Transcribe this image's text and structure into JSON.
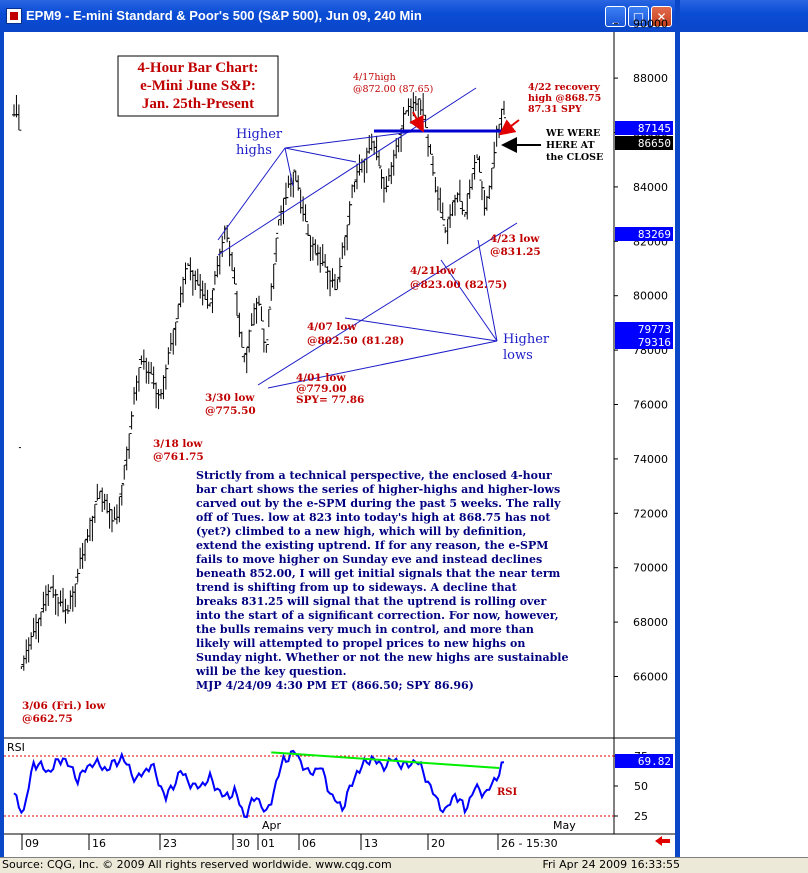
{
  "window": {
    "title": "EPM9 - E-mini Standard & Poor's 500 (S&P 500), Jun 09, 240 Min",
    "min_label": "_",
    "max_label": "□",
    "close_label": "✕"
  },
  "footer": {
    "source": "Source: CQG, Inc. © 2009 All rights reserved worldwide. www.cqg.com",
    "timestamp": "Fri Apr 24 2009 16:33:55"
  },
  "colors": {
    "bars": "#000000",
    "annotation": "#c00000",
    "trendline": "#1c1cc8",
    "rsi_line": "#0000ff",
    "divergence": "#00ee00",
    "frame": "#0a46c8"
  },
  "chart_data": [
    {
      "type": "bar",
      "title": "4-Hour Bar Chart:\ne-Mini June S&P:\nJan. 25th-Present",
      "y_ticks": [
        "90000",
        "88000",
        "86000",
        "84000",
        "82000",
        "80000",
        "78000",
        "76000",
        "74000",
        "72000",
        "70000",
        "68000",
        "66000"
      ],
      "ylim": [
        652,
        912
      ],
      "x_ticks": [
        "09",
        "16",
        "23",
        "30",
        "01",
        "06",
        "13",
        "20",
        "26 - 15:30"
      ],
      "x_month_labels": [
        "Apr",
        "May"
      ],
      "price_tags": [
        {
          "label": "87145",
          "value": 871.45,
          "style": "blue"
        },
        {
          "label": "86650",
          "value": 866.5,
          "style": "black"
        },
        {
          "label": "83269",
          "value": 832.69,
          "style": "blue"
        },
        {
          "label": "79773",
          "value": 797.73,
          "style": "blue"
        },
        {
          "label": "79316",
          "value": 793.16,
          "style": "blue"
        }
      ],
      "swing_points": [
        {
          "bar": 3,
          "price": 662.75
        },
        {
          "bar": 15,
          "price": 693
        },
        {
          "bar": 22,
          "price": 683
        },
        {
          "bar": 35,
          "price": 728
        },
        {
          "bar": 42,
          "price": 716
        },
        {
          "bar": 52,
          "price": 778
        },
        {
          "bar": 60,
          "price": 762
        },
        {
          "bar": 71,
          "price": 812
        },
        {
          "bar": 80,
          "price": 796
        },
        {
          "bar": 87,
          "price": 826
        },
        {
          "bar": 94,
          "price": 775.5
        },
        {
          "bar": 100,
          "price": 800
        },
        {
          "bar": 103,
          "price": 779
        },
        {
          "bar": 108,
          "price": 828
        },
        {
          "bar": 115,
          "price": 846
        },
        {
          "bar": 120,
          "price": 822
        },
        {
          "bar": 132,
          "price": 802.5
        },
        {
          "bar": 139,
          "price": 842
        },
        {
          "bar": 147,
          "price": 857
        },
        {
          "bar": 152,
          "price": 838
        },
        {
          "bar": 160,
          "price": 868
        },
        {
          "bar": 166,
          "price": 872
        },
        {
          "bar": 170,
          "price": 852
        },
        {
          "bar": 176,
          "price": 823
        },
        {
          "bar": 181,
          "price": 838
        },
        {
          "bar": 184,
          "price": 829
        },
        {
          "bar": 189,
          "price": 852
        },
        {
          "bar": 193,
          "price": 831.25
        },
        {
          "bar": 199,
          "price": 868.75
        },
        {
          "bar": 200,
          "price": 866.5
        }
      ],
      "annotations": [
        {
          "id": "a1",
          "lines": [
            "4/17high",
            "@872.00 (87.65)"
          ]
        },
        {
          "id": "a2",
          "lines": [
            "4/22 recovery",
            "high @868.75",
            "87.31 SPY"
          ]
        },
        {
          "id": "a3",
          "lines": [
            "WE WERE",
            "HERE AT",
            "the CLOSE"
          ]
        },
        {
          "id": "a4",
          "lines": [
            "Higher",
            "highs"
          ]
        },
        {
          "id": "a5",
          "lines": [
            "4/23 low",
            "@831.25"
          ]
        },
        {
          "id": "a6",
          "lines": [
            "4/21low",
            "@823.00 (82.75)"
          ]
        },
        {
          "id": "a7",
          "lines": [
            "4/07 low",
            "@802.50 (81.28)"
          ]
        },
        {
          "id": "a8",
          "lines": [
            "Higher",
            "lows"
          ]
        },
        {
          "id": "a9",
          "lines": [
            "4/01 low",
            "@779.00",
            "SPY= 77.86"
          ]
        },
        {
          "id": "a10",
          "lines": [
            "3/30 low",
            "@775.50"
          ]
        },
        {
          "id": "a11",
          "lines": [
            "3/18 low",
            "@761.75"
          ]
        },
        {
          "id": "a12",
          "lines": [
            "3/06 (Fri.) low",
            "@662.75"
          ]
        }
      ],
      "commentary": [
        "Strictly from a technical perspective, the enclosed 4-hour",
        "bar chart shows the series of higher-highs and higher-lows",
        "carved out by the e-SPM during the past 5 weeks. The rally",
        "off of Tues. low at 823 into today's high at 868.75 has not",
        "(yet?) climbed to a new high, which will by definition,",
        "extend the existing uptrend. If for any reason, the e-SPM",
        "fails to move higher on Sunday eve and instead declines",
        "beneath 852.00, I will get initial signals that the near term",
        "trend is shifting from up to sideways. A decline that",
        "breaks 831.25 will signal that the uptrend is rolling over",
        "into the start of a significant correction. For now, however,",
        "the bulls remains very much in control, and more than",
        "likely will attempted to propel prices to new highs on",
        "Sunday night. Whether or not the new highs are sustainable",
        "will be the key question.",
        "MJP 4/24/09  4:30 PM ET (866.50; SPY 86.96)"
      ]
    },
    {
      "type": "line",
      "label": "RSI",
      "series_label": "RSI",
      "y_ticks": [
        "75",
        "50",
        "25"
      ],
      "ylim": [
        21,
        84
      ],
      "value_tag": "69.82",
      "knots": [
        {
          "bar": 0,
          "value": 42
        },
        {
          "bar": 4,
          "value": 28
        },
        {
          "bar": 8,
          "value": 70
        },
        {
          "bar": 14,
          "value": 62
        },
        {
          "bar": 20,
          "value": 74
        },
        {
          "bar": 26,
          "value": 56
        },
        {
          "bar": 32,
          "value": 70
        },
        {
          "bar": 38,
          "value": 64
        },
        {
          "bar": 44,
          "value": 74
        },
        {
          "bar": 50,
          "value": 55
        },
        {
          "bar": 56,
          "value": 68
        },
        {
          "bar": 62,
          "value": 40
        },
        {
          "bar": 68,
          "value": 62
        },
        {
          "bar": 74,
          "value": 48
        },
        {
          "bar": 80,
          "value": 56
        },
        {
          "bar": 86,
          "value": 40
        },
        {
          "bar": 90,
          "value": 46
        },
        {
          "bar": 94,
          "value": 25
        },
        {
          "bar": 99,
          "value": 42
        },
        {
          "bar": 103,
          "value": 26
        },
        {
          "bar": 110,
          "value": 72
        },
        {
          "bar": 115,
          "value": 78
        },
        {
          "bar": 120,
          "value": 60
        },
        {
          "bar": 125,
          "value": 66
        },
        {
          "bar": 130,
          "value": 40
        },
        {
          "bar": 134,
          "value": 32
        },
        {
          "bar": 140,
          "value": 62
        },
        {
          "bar": 146,
          "value": 74
        },
        {
          "bar": 150,
          "value": 66
        },
        {
          "bar": 155,
          "value": 72
        },
        {
          "bar": 160,
          "value": 66
        },
        {
          "bar": 164,
          "value": 72
        },
        {
          "bar": 168,
          "value": 58
        },
        {
          "bar": 172,
          "value": 40
        },
        {
          "bar": 176,
          "value": 28
        },
        {
          "bar": 180,
          "value": 44
        },
        {
          "bar": 184,
          "value": 30
        },
        {
          "bar": 188,
          "value": 48
        },
        {
          "bar": 193,
          "value": 44
        },
        {
          "bar": 197,
          "value": 58
        },
        {
          "bar": 200,
          "value": 69.82
        }
      ],
      "divergence_line": [
        {
          "bar": 105,
          "value": 78
        },
        {
          "bar": 198,
          "value": 65
        }
      ]
    }
  ]
}
